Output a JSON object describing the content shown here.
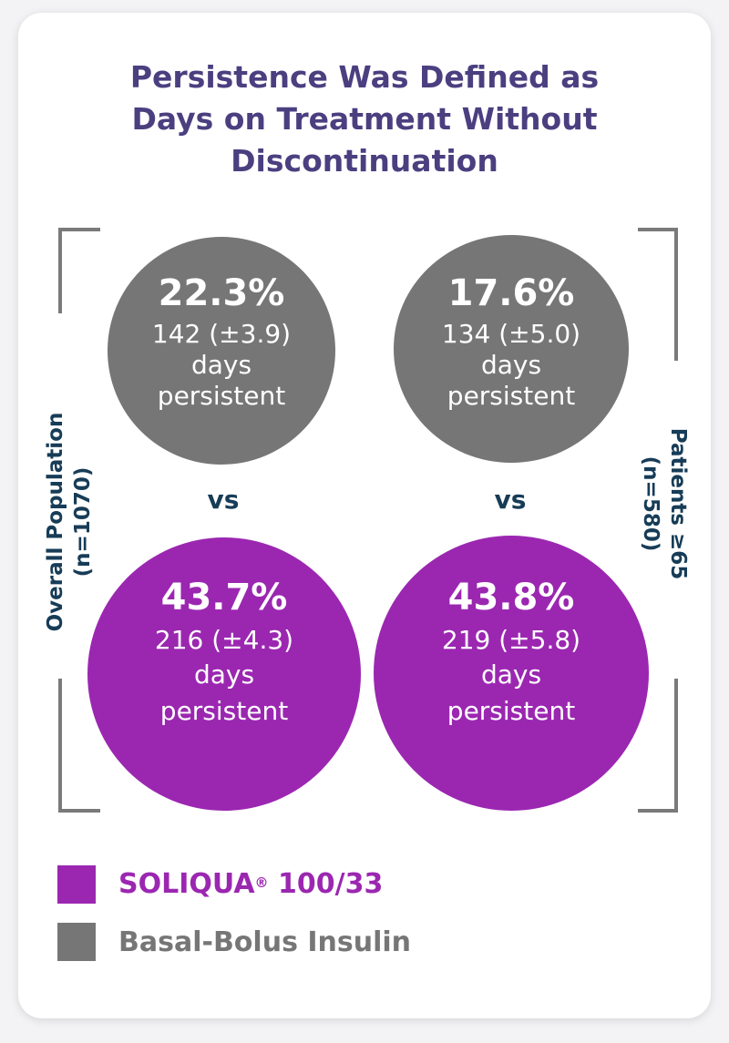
{
  "colors": {
    "soliqua": "#9b27b1",
    "basal_bolus": "#767676",
    "title": "#4b3f80",
    "label": "#173c57"
  },
  "title_lines": [
    "Persistence Was Defined as",
    "Days on Treatment Without",
    "Discontinuation"
  ],
  "groups": [
    {
      "label_line1": "Overall Population",
      "label_line2": "(n=1070)",
      "basal_bolus": {
        "percent": "22.3%",
        "days": "142 (±3.9)",
        "unit": "days",
        "suffix": "persistent"
      },
      "soliqua": {
        "percent": "43.7%",
        "days": "216 (±4.3)",
        "unit": "days",
        "suffix": "persistent"
      },
      "vs": "vs"
    },
    {
      "label_line1": "Patients ≥65",
      "label_line2": "(n=580)",
      "basal_bolus": {
        "percent": "17.6%",
        "days": "134 (±5.0)",
        "unit": "days",
        "suffix": "persistent"
      },
      "soliqua": {
        "percent": "43.8%",
        "days": "219 (±5.8)",
        "unit": "days",
        "suffix": "persistent"
      },
      "vs": "vs"
    }
  ],
  "legend": {
    "soliqua_name": "SOLIQUA",
    "soliqua_reg": "®",
    "soliqua_dose": " 100/33",
    "basal_bolus": "Basal-Bolus Insulin"
  },
  "chart_data": {
    "type": "bubble",
    "title": "Persistence Was Defined as Days on Treatment Without Discontinuation",
    "categories": [
      "Overall Population (n=1070)",
      "Patients ≥65 (n=580)"
    ],
    "series": [
      {
        "name": "Basal-Bolus Insulin",
        "persistence_pct": [
          22.3,
          17.6
        ],
        "mean_days": [
          142,
          134
        ],
        "se_days": [
          3.9,
          5.0
        ]
      },
      {
        "name": "SOLIQUA® 100/33",
        "persistence_pct": [
          43.7,
          43.8
        ],
        "mean_days": [
          216,
          219
        ],
        "se_days": [
          4.3,
          5.8
        ]
      }
    ]
  }
}
